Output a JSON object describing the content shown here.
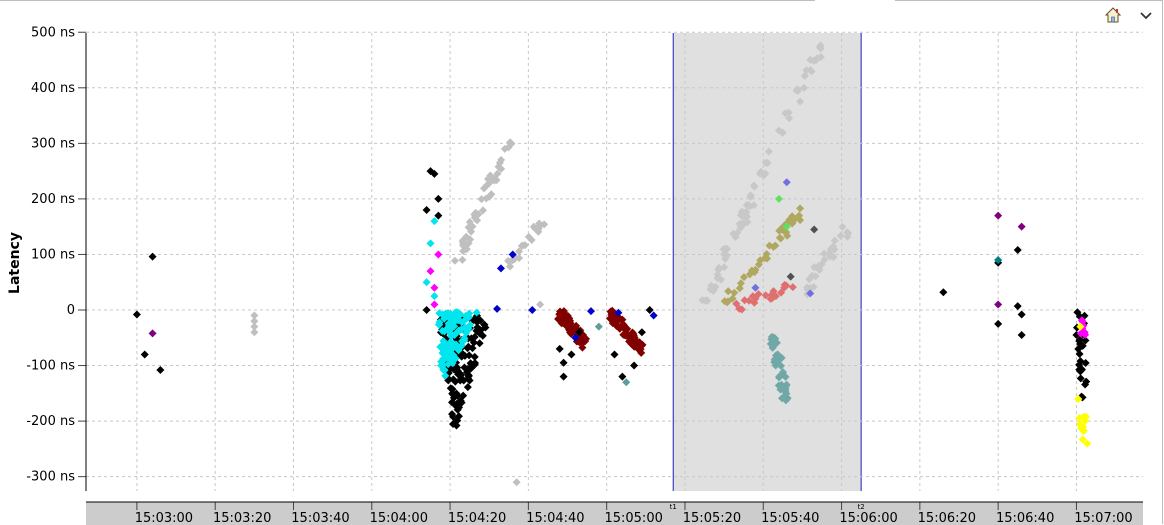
{
  "toolbar": {
    "home_icon": "home-icon",
    "menu_icon": "chevron-down-icon"
  },
  "chart_data": {
    "type": "scatter",
    "title": "",
    "xlabel": "",
    "ylabel": "Latency",
    "ylim": [
      -325,
      500
    ],
    "y_ticks": [
      {
        "value": 500,
        "label": "500 ns"
      },
      {
        "value": 400,
        "label": "400 ns"
      },
      {
        "value": 300,
        "label": "300 ns"
      },
      {
        "value": 200,
        "label": "200 ns"
      },
      {
        "value": 100,
        "label": "100 ns"
      },
      {
        "value": 0,
        "label": "0"
      },
      {
        "value": -100,
        "label": "-100 ns"
      },
      {
        "value": -200,
        "label": "-200 ns"
      },
      {
        "value": -300,
        "label": "-300 ns"
      }
    ],
    "xlim": [
      "15:02:47",
      "15:07:17"
    ],
    "x_ticks": [
      "15:03:00",
      "15:03:20",
      "15:03:40",
      "15:04:00",
      "15:04:20",
      "15:04:40",
      "15:05:00",
      "15:05:20",
      "15:05:40",
      "15:06:00",
      "15:06:20",
      "15:06:40",
      "15:07:00"
    ],
    "grid": true,
    "selection": {
      "start": "15:05:17",
      "end": "15:06:05",
      "color": "#e0e0e0",
      "edge_color": "#1f1fbf",
      "handle_labels": [
        "t1",
        "t2"
      ]
    },
    "clusters": [
      {
        "color": "#000000",
        "points": [
          [
            "15:03:00",
            -8
          ],
          [
            "15:03:02",
            -80
          ],
          [
            "15:03:04",
            96
          ],
          [
            "15:03:06",
            -108
          ]
        ]
      },
      {
        "color": "#800080",
        "points": [
          [
            "15:03:04",
            -42
          ]
        ]
      },
      {
        "color": "#bfbfbf",
        "points": [
          [
            "15:03:30",
            -10
          ],
          [
            "15:03:30",
            -20
          ],
          [
            "15:03:30",
            -30
          ],
          [
            "15:03:30",
            -40
          ]
        ]
      },
      {
        "color": "#000000",
        "from": [
          "15:04:17",
          -4
        ],
        "to": [
          "15:04:21",
          -225
        ],
        "to2": [
          "15:04:30",
          -10
        ],
        "count": 140
      },
      {
        "color": "#00e5ee",
        "from": [
          "15:04:17",
          -4
        ],
        "to": [
          "15:04:18",
          -140
        ],
        "to2": [
          "15:04:27",
          -4
        ],
        "count": 110
      },
      {
        "color": "#000000",
        "points": [
          [
            "15:04:14",
            0
          ],
          [
            "15:04:14",
            180
          ],
          [
            "15:04:15",
            250
          ],
          [
            "15:04:16",
            245
          ],
          [
            "15:04:17",
            200
          ],
          [
            "15:04:17",
            170
          ]
        ]
      },
      {
        "color": "#00e5ee",
        "points": [
          [
            "15:04:14",
            50
          ],
          [
            "15:04:15",
            120
          ],
          [
            "15:04:16",
            160
          ],
          [
            "15:04:16",
            25
          ]
        ]
      },
      {
        "color": "#ff00ff",
        "points": [
          [
            "15:04:15",
            70
          ],
          [
            "15:04:16",
            40
          ],
          [
            "15:04:17",
            100
          ],
          [
            "15:04:16",
            10
          ]
        ]
      },
      {
        "color": "#bfbfbf",
        "from": [
          "15:04:22",
          90
        ],
        "to": [
          "15:04:35",
          300
        ],
        "count": 45
      },
      {
        "color": "#bfbfbf",
        "from": [
          "15:04:34",
          70
        ],
        "to": [
          "15:04:44",
          165
        ],
        "count": 20
      },
      {
        "color": "#bfbfbf",
        "points": [
          [
            "15:04:43",
            10
          ],
          [
            "15:04:37",
            -310
          ]
        ]
      },
      {
        "color": "#0000cc",
        "points": [
          [
            "15:04:36",
            100
          ],
          [
            "15:04:33",
            75
          ],
          [
            "15:04:32",
            2
          ],
          [
            "15:04:41",
            0
          ]
        ]
      },
      {
        "color": "#800000",
        "from": [
          "15:04:48",
          -5
        ],
        "to": [
          "15:04:54",
          -60
        ],
        "count": 60
      },
      {
        "color": "#000000",
        "points": [
          [
            "15:04:48",
            -70
          ],
          [
            "15:04:49",
            -95
          ],
          [
            "15:04:49",
            -120
          ],
          [
            "15:04:51",
            -80
          ],
          [
            "15:04:53",
            -40
          ]
        ]
      },
      {
        "color": "#0000cc",
        "points": [
          [
            "15:04:56",
            -2
          ],
          [
            "15:04:52",
            -50
          ]
        ]
      },
      {
        "color": "#800000",
        "from": [
          "15:05:01",
          -5
        ],
        "to": [
          "15:05:09",
          -70
        ],
        "count": 70
      },
      {
        "color": "#000000",
        "points": [
          [
            "15:05:02",
            -80
          ],
          [
            "15:05:04",
            -120
          ],
          [
            "15:05:07",
            -100
          ],
          [
            "15:05:09",
            -40
          ],
          [
            "15:05:11",
            0
          ]
        ]
      },
      {
        "color": "#0000cc",
        "points": [
          [
            "15:05:03",
            -5
          ],
          [
            "15:05:12",
            -10
          ]
        ]
      },
      {
        "color": "#5f9ea0",
        "points": [
          [
            "15:04:58",
            -30
          ],
          [
            "15:05:05",
            -130
          ]
        ]
      },
      {
        "color": "#c8c8c8",
        "from": [
          "15:05:25",
          10
        ],
        "to": [
          "15:05:55",
          480
        ],
        "count": 80
      },
      {
        "color": "#c8c8c8",
        "from": [
          "15:05:50",
          30
        ],
        "to": [
          "15:06:02",
          150
        ],
        "count": 30
      },
      {
        "color": "#b0a860",
        "from": [
          "15:05:30",
          10
        ],
        "to": [
          "15:05:50",
          180
        ],
        "count": 40
      },
      {
        "color": "#e07070",
        "from": [
          "15:05:33",
          5
        ],
        "to": [
          "15:05:47",
          40
        ],
        "count": 20
      },
      {
        "color": "#70a8a8",
        "from": [
          "15:05:42",
          -30
        ],
        "to": [
          "15:05:46",
          -170
        ],
        "count": 45
      },
      {
        "color": "#7070e0",
        "points": [
          [
            "15:05:46",
            230
          ],
          [
            "15:05:52",
            30
          ],
          [
            "15:05:38",
            40
          ]
        ]
      },
      {
        "color": "#60e060",
        "points": [
          [
            "15:05:44",
            200
          ],
          [
            "15:05:46",
            150
          ]
        ]
      },
      {
        "color": "#505050",
        "points": [
          [
            "15:05:53",
            145
          ],
          [
            "15:05:47",
            60
          ]
        ]
      },
      {
        "color": "#000000",
        "points": [
          [
            "15:06:26",
            32
          ],
          [
            "15:06:40",
            85
          ],
          [
            "15:06:40",
            -25
          ],
          [
            "15:06:45",
            108
          ],
          [
            "15:06:45",
            7
          ],
          [
            "15:06:46",
            -8
          ],
          [
            "15:06:46",
            -45
          ],
          [
            "15:07:00",
            -45
          ]
        ]
      },
      {
        "color": "#800080",
        "points": [
          [
            "15:06:40",
            170
          ],
          [
            "15:06:40",
            10
          ],
          [
            "15:06:46",
            150
          ]
        ]
      },
      {
        "color": "#008080",
        "points": [
          [
            "15:06:40",
            90
          ]
        ]
      },
      {
        "color": "#000000",
        "from": [
          "15:07:01",
          -10
        ],
        "to": [
          "15:07:02",
          -150
        ],
        "count": 25
      },
      {
        "color": "#ff00ff",
        "from": [
          "15:07:01",
          -20
        ],
        "to": [
          "15:07:02",
          -60
        ],
        "count": 8
      },
      {
        "color": "#ffff00",
        "from": [
          "15:07:01",
          -150
        ],
        "to": [
          "15:07:02",
          -240
        ],
        "count": 12
      },
      {
        "color": "#ffff00",
        "points": [
          [
            "15:07:01",
            -30
          ]
        ]
      }
    ]
  }
}
